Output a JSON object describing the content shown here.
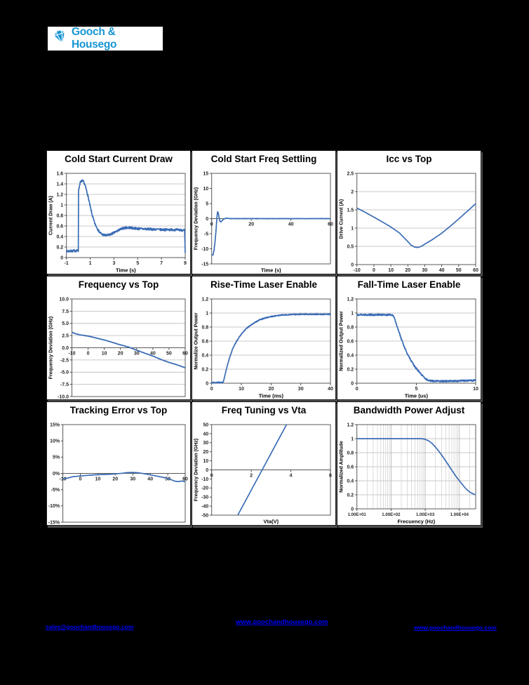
{
  "logo": {
    "name": "Gooch & Housego",
    "color": "#1796d3",
    "icon": "diamond-gem-icon"
  },
  "footer": {
    "left_link": "sales@goochandhousego.com",
    "center_link": "www.goochandhousego.com",
    "right_link": "www.goochandhousego.com",
    "link_color": "#0000ff"
  },
  "line_color": "#3a6cb5",
  "chart_data": [
    {
      "type": "line",
      "title": "Cold Start Current Draw",
      "xlabel": "Time (s)",
      "ylabel": "Current Draw (A)",
      "xlim": [
        -1,
        9
      ],
      "ylim": [
        0,
        1.6
      ],
      "xscale": "linear",
      "grid_h": true,
      "grid_v_log": false,
      "noise": 0.022,
      "xticks": {
        "values": [
          -1,
          1,
          3,
          5,
          7,
          9
        ],
        "labels": [
          "-1",
          "1",
          "3",
          "5",
          "7",
          "9"
        ]
      },
      "yticks": {
        "values": [
          0,
          0.2,
          0.4,
          0.6,
          0.8,
          1,
          1.2,
          1.4,
          1.6
        ],
        "labels": [
          "0",
          "0.2",
          "0.4",
          "0.6",
          "0.8",
          "1",
          "1.2",
          "1.4",
          "1.6"
        ]
      },
      "points": [
        [
          -1,
          0.12
        ],
        [
          -0.1,
          0.13
        ],
        [
          0,
          0.13
        ],
        [
          0,
          1.25
        ],
        [
          0.15,
          1.42
        ],
        [
          0.3,
          1.46
        ],
        [
          0.45,
          1.44
        ],
        [
          0.6,
          1.35
        ],
        [
          0.8,
          1.18
        ],
        [
          1,
          0.97
        ],
        [
          1.2,
          0.78
        ],
        [
          1.4,
          0.64
        ],
        [
          1.6,
          0.55
        ],
        [
          1.8,
          0.48
        ],
        [
          2,
          0.44
        ],
        [
          2.3,
          0.42
        ],
        [
          2.6,
          0.43
        ],
        [
          3,
          0.47
        ],
        [
          3.4,
          0.52
        ],
        [
          3.8,
          0.56
        ],
        [
          4.2,
          0.57
        ],
        [
          4.6,
          0.56
        ],
        [
          5,
          0.55
        ],
        [
          6,
          0.54
        ],
        [
          7,
          0.53
        ],
        [
          8,
          0.53
        ],
        [
          8.95,
          0.52
        ],
        [
          9,
          0.07
        ]
      ]
    },
    {
      "type": "line",
      "title": "Cold Start Freq Settling",
      "xlabel": "Time (s)",
      "ylabel": "Frequency Deviation (GHz)",
      "xlim": [
        0,
        60
      ],
      "ylim": [
        -15,
        15
      ],
      "xscale": "linear",
      "grid_h": false,
      "grid_v_log": false,
      "noise": 0.05,
      "xticks": {
        "values": [
          0,
          20,
          40,
          60
        ],
        "labels": [
          "0",
          "20",
          "40",
          "60"
        ]
      },
      "yticks": {
        "values": [
          -15,
          -10,
          -5,
          0,
          5,
          10,
          15
        ],
        "labels": [
          "-15",
          "-10",
          "-5",
          "0",
          "5",
          "10",
          "15"
        ]
      },
      "points": [
        [
          0,
          -12
        ],
        [
          0.7,
          -12
        ],
        [
          1.2,
          -10.5
        ],
        [
          1.8,
          -7
        ],
        [
          2.3,
          -3
        ],
        [
          2.7,
          0.8
        ],
        [
          3,
          2.3
        ],
        [
          3.3,
          2
        ],
        [
          3.7,
          0.5
        ],
        [
          4.1,
          -0.8
        ],
        [
          4.6,
          -1.1
        ],
        [
          5.2,
          -0.7
        ],
        [
          6,
          -0.2
        ],
        [
          7,
          0.1
        ],
        [
          8,
          0.1
        ],
        [
          10,
          0
        ],
        [
          20,
          0
        ],
        [
          40,
          0
        ],
        [
          60,
          0
        ]
      ]
    },
    {
      "type": "line",
      "title": "Icc vs Top",
      "xlabel": "",
      "ylabel": "Drive Current (A)",
      "xlim": [
        -10,
        60
      ],
      "ylim": [
        0,
        2.5
      ],
      "xscale": "linear",
      "grid_h": true,
      "grid_v_log": false,
      "noise": 0,
      "xticks": {
        "values": [
          -10,
          0,
          10,
          20,
          30,
          40,
          50,
          60
        ],
        "labels": [
          "-10",
          "0",
          "10",
          "20",
          "30",
          "40",
          "50",
          "60"
        ]
      },
      "yticks": {
        "values": [
          0,
          0.5,
          1,
          1.5,
          2,
          2.5
        ],
        "labels": [
          "0",
          "0.5",
          "1",
          "1.5",
          "2",
          "2.5"
        ]
      },
      "points": [
        [
          -10,
          1.55
        ],
        [
          -5,
          1.43
        ],
        [
          0,
          1.3
        ],
        [
          5,
          1.17
        ],
        [
          10,
          1.03
        ],
        [
          15,
          0.87
        ],
        [
          20,
          0.63
        ],
        [
          22,
          0.53
        ],
        [
          24,
          0.48
        ],
        [
          26,
          0.47
        ],
        [
          28,
          0.5
        ],
        [
          30,
          0.56
        ],
        [
          35,
          0.7
        ],
        [
          40,
          0.86
        ],
        [
          45,
          1.05
        ],
        [
          50,
          1.25
        ],
        [
          55,
          1.46
        ],
        [
          60,
          1.67
        ]
      ]
    },
    {
      "type": "line",
      "title": "Frequency vs Top",
      "xlabel": "",
      "ylabel": "Frequency Deviation (GHz)",
      "xlim": [
        -10,
        60
      ],
      "ylim": [
        -10,
        10
      ],
      "xscale": "linear",
      "grid_h": true,
      "grid_v_log": false,
      "noise": 0.03,
      "xticks": {
        "values": [
          -10,
          0,
          10,
          20,
          30,
          40,
          50,
          60
        ],
        "labels": [
          "-10",
          "0",
          "10",
          "20",
          "30",
          "40",
          "50",
          "60"
        ]
      },
      "yticks": {
        "values": [
          -10,
          -7.5,
          -5,
          -2.5,
          0,
          2.5,
          5,
          7.5,
          10
        ],
        "labels": [
          "-10.0",
          "-7.5",
          "-5.0",
          "-2.5",
          "0.0",
          "2.5",
          "5.0",
          "7.5",
          "10.0"
        ]
      },
      "points": [
        [
          -10,
          3.2
        ],
        [
          -8,
          2.9
        ],
        [
          -5,
          2.65
        ],
        [
          0,
          2.4
        ],
        [
          5,
          2
        ],
        [
          10,
          1.6
        ],
        [
          15,
          1.1
        ],
        [
          20,
          0.6
        ],
        [
          25,
          0.15
        ],
        [
          30,
          -0.5
        ],
        [
          35,
          -1.1
        ],
        [
          40,
          -1.7
        ],
        [
          45,
          -2.4
        ],
        [
          50,
          -3
        ],
        [
          55,
          -3.5
        ],
        [
          60,
          -4.1
        ]
      ]
    },
    {
      "type": "line",
      "title": "Rise-Time Laser Enable",
      "xlabel": "Time (ms)",
      "ylabel": "Normalize Output Power",
      "xlim": [
        0,
        40
      ],
      "ylim": [
        0,
        1.2
      ],
      "xscale": "linear",
      "grid_h": true,
      "grid_v_log": false,
      "noise": 0.007,
      "xticks": {
        "values": [
          0,
          10,
          20,
          30,
          40
        ],
        "labels": [
          "0",
          "10",
          "20",
          "30",
          "40"
        ]
      },
      "yticks": {
        "values": [
          0,
          0.2,
          0.4,
          0.6,
          0.8,
          1,
          1.2
        ],
        "labels": [
          "0",
          "0.2",
          "0.4",
          "0.6",
          "0.8",
          "1",
          "1.2"
        ]
      },
      "points": [
        [
          0,
          0.01
        ],
        [
          3.8,
          0.01
        ],
        [
          4,
          0.03
        ],
        [
          4.5,
          0.12
        ],
        [
          5,
          0.21
        ],
        [
          5.5,
          0.29
        ],
        [
          6,
          0.36
        ],
        [
          7,
          0.48
        ],
        [
          8,
          0.57
        ],
        [
          9,
          0.64
        ],
        [
          10,
          0.7
        ],
        [
          11,
          0.75
        ],
        [
          12,
          0.79
        ],
        [
          13,
          0.82
        ],
        [
          14,
          0.85
        ],
        [
          15,
          0.875
        ],
        [
          16,
          0.9
        ],
        [
          17,
          0.915
        ],
        [
          18,
          0.93
        ],
        [
          19,
          0.94
        ],
        [
          20,
          0.95
        ],
        [
          22,
          0.962
        ],
        [
          24,
          0.972
        ],
        [
          26,
          0.977
        ],
        [
          28,
          0.98
        ],
        [
          30,
          0.982
        ],
        [
          35,
          0.982
        ],
        [
          40,
          0.982
        ]
      ]
    },
    {
      "type": "line",
      "title": "Fall-Time Laser Enable",
      "xlabel": "Time (us)",
      "ylabel": "Normalized Output Power",
      "xlim": [
        0,
        10
      ],
      "ylim": [
        0,
        1.2
      ],
      "xscale": "linear",
      "grid_h": true,
      "grid_v_log": false,
      "noise": 0.012,
      "xticks": {
        "values": [
          0,
          5,
          10
        ],
        "labels": [
          "0",
          "5",
          "10"
        ]
      },
      "yticks": {
        "values": [
          0,
          0.2,
          0.4,
          0.6,
          0.8,
          1,
          1.2
        ],
        "labels": [
          "0",
          "0.2",
          "0.4",
          "0.6",
          "0.8",
          "1",
          "1.2"
        ]
      },
      "points": [
        [
          0,
          0.975
        ],
        [
          3,
          0.975
        ],
        [
          3.15,
          0.93
        ],
        [
          3.4,
          0.8
        ],
        [
          3.7,
          0.65
        ],
        [
          4,
          0.51
        ],
        [
          4.3,
          0.4
        ],
        [
          4.6,
          0.31
        ],
        [
          4.9,
          0.23
        ],
        [
          5.2,
          0.17
        ],
        [
          5.5,
          0.11
        ],
        [
          5.8,
          0.06
        ],
        [
          6.1,
          0.035
        ],
        [
          6.5,
          0.03
        ],
        [
          7,
          0.03
        ],
        [
          8,
          0.03
        ],
        [
          9,
          0.035
        ],
        [
          10,
          0.04
        ]
      ]
    },
    {
      "type": "line",
      "title": "Tracking Error vs Top",
      "xlabel": "",
      "ylabel": "",
      "xlim": [
        -10,
        60
      ],
      "ylim": [
        -15,
        15
      ],
      "xscale": "linear",
      "grid_h": false,
      "grid_v_log": false,
      "noise": 0,
      "xticks": {
        "values": [
          -10,
          0,
          10,
          20,
          30,
          40,
          50,
          60
        ],
        "labels": [
          "-10",
          "0",
          "10",
          "20",
          "30",
          "40",
          "50",
          "60"
        ]
      },
      "yticks": {
        "values": [
          -15,
          -10,
          -5,
          0,
          5,
          10,
          15
        ],
        "labels": [
          "-15%",
          "-10%",
          "-5%",
          "0%",
          "5%",
          "10%",
          "15%"
        ]
      },
      "points": [
        [
          -10,
          -1.7
        ],
        [
          -7,
          -1.4
        ],
        [
          -4,
          -1
        ],
        [
          0,
          -0.8
        ],
        [
          4,
          -0.6
        ],
        [
          8,
          -0.45
        ],
        [
          12,
          -0.35
        ],
        [
          16,
          -0.3
        ],
        [
          20,
          -0.15
        ],
        [
          24,
          0.05
        ],
        [
          27,
          0.25
        ],
        [
          30,
          0.3
        ],
        [
          33,
          0.2
        ],
        [
          36,
          -0.05
        ],
        [
          40,
          -0.45
        ],
        [
          44,
          -0.85
        ],
        [
          48,
          -1.3
        ],
        [
          51,
          -1.7
        ],
        [
          54,
          -2.4
        ],
        [
          56,
          -2.5
        ],
        [
          58,
          -2.35
        ],
        [
          60,
          -2.5
        ]
      ]
    },
    {
      "type": "line",
      "title": "Freq Tuning vs Vta",
      "xlabel": "Vta(V)",
      "ylabel": "Frequency Deviation  (GHz)",
      "xlim": [
        0,
        6
      ],
      "ylim": [
        -50,
        50
      ],
      "xscale": "linear",
      "grid_h": false,
      "grid_v_log": false,
      "noise": 0,
      "xticks": {
        "values": [
          0,
          2,
          4,
          6
        ],
        "labels": [
          "0",
          "2",
          "4",
          "6"
        ]
      },
      "yticks": {
        "values": [
          -50,
          -40,
          -30,
          -20,
          -10,
          0,
          10,
          20,
          30,
          40,
          50
        ],
        "labels": [
          "-50",
          "-40",
          "-30",
          "-20",
          "-10",
          "0",
          "10",
          "20",
          "30",
          "40",
          "50"
        ]
      },
      "points": [
        [
          1.32,
          -50
        ],
        [
          3.78,
          50
        ]
      ]
    },
    {
      "type": "line",
      "title": "Bandwidth Power Adjust",
      "xlabel": "Frecuency (Hz)",
      "ylabel": "Normalized Amplitude",
      "xlim": [
        10,
        30000
      ],
      "ylim": [
        0,
        1.2
      ],
      "xscale": "log",
      "grid_h": true,
      "grid_v_log": true,
      "noise": 0,
      "xticks": {
        "values": [
          10,
          100,
          1000,
          10000
        ],
        "labels": [
          "1.00E+01",
          "1.00E+02",
          "1.00E+03",
          "1.00E+04"
        ]
      },
      "yticks": {
        "values": [
          0,
          0.2,
          0.4,
          0.6,
          0.8,
          1,
          1.2
        ],
        "labels": [
          "0",
          "0.2",
          "0.4",
          "0.6",
          "0.8",
          "1",
          "1.2"
        ]
      },
      "points": [
        [
          10,
          1
        ],
        [
          100,
          1
        ],
        [
          500,
          1
        ],
        [
          800,
          1
        ],
        [
          1000,
          0.99
        ],
        [
          1300,
          0.965
        ],
        [
          1600,
          0.93
        ],
        [
          2000,
          0.88
        ],
        [
          2500,
          0.82
        ],
        [
          3000,
          0.77
        ],
        [
          4000,
          0.68
        ],
        [
          5000,
          0.61
        ],
        [
          6000,
          0.55
        ],
        [
          8000,
          0.46
        ],
        [
          10000,
          0.4
        ],
        [
          13000,
          0.33
        ],
        [
          16000,
          0.28
        ],
        [
          20000,
          0.24
        ],
        [
          26000,
          0.21
        ],
        [
          30000,
          0.2
        ]
      ]
    }
  ]
}
